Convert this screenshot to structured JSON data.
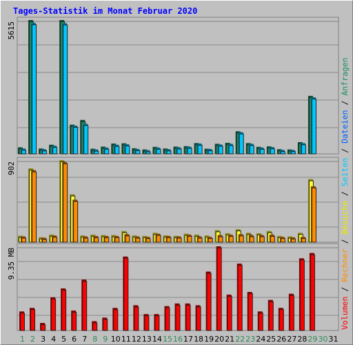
{
  "chart_data": {
    "type": "bar",
    "title": "Tages-Statistik im Monat Februar 2020",
    "categories": [
      "1",
      "2",
      "3",
      "4",
      "5",
      "6",
      "7",
      "8",
      "9",
      "10",
      "11",
      "12",
      "13",
      "14",
      "15",
      "16",
      "17",
      "18",
      "19",
      "20",
      "21",
      "22",
      "23",
      "24",
      "25",
      "26",
      "27",
      "28",
      "29",
      "30",
      "31"
    ],
    "weekend_days": [
      "1",
      "2",
      "8",
      "9",
      "15",
      "16",
      "22",
      "23",
      "29",
      "30"
    ],
    "panels": [
      {
        "id": "requests",
        "max_label": "5615",
        "max": 5615,
        "series": [
          {
            "name": "Anfragen",
            "color": "#1f8f60",
            "values": [
              220,
              5615,
              170,
              330,
              5615,
              1180,
              1380,
              160,
              250,
              380,
              390,
              180,
              130,
              240,
              170,
              250,
              270,
              400,
              160,
              370,
              410,
              900,
              400,
              240,
              260,
              140,
              130,
              440,
              2400,
              0,
              0
            ]
          },
          {
            "name": "Dateien",
            "color": "#00c8ff",
            "values": [
              170,
              5490,
              140,
              290,
              5480,
              1140,
              1220,
              130,
              210,
              330,
              350,
              150,
              100,
              210,
              140,
              220,
              250,
              380,
              150,
              340,
              370,
              860,
              370,
              210,
              230,
              110,
              110,
              400,
              2340,
              0,
              0
            ]
          }
        ]
      },
      {
        "id": "visits",
        "max_label": "902",
        "max": 902,
        "series": [
          {
            "name": "Besuche",
            "color": "#ffff33",
            "values": [
              57,
              810,
              40,
              70,
              902,
              520,
              60,
              70,
              65,
              65,
              110,
              60,
              55,
              90,
              60,
              55,
              80,
              70,
              60,
              120,
              85,
              130,
              90,
              85,
              110,
              55,
              50,
              90,
              690,
              0,
              0
            ]
          },
          {
            "name": "Rechner",
            "color": "#ff8c00",
            "values": [
              50,
              790,
              35,
              60,
              880,
              460,
              50,
              55,
              55,
              55,
              75,
              50,
              45,
              80,
              55,
              50,
              70,
              50,
              45,
              65,
              70,
              75,
              65,
              65,
              70,
              45,
              40,
              45,
              610,
              0,
              0
            ]
          }
        ]
      },
      {
        "id": "volume",
        "max_label": "9.35 MB",
        "max": 9.35,
        "series": [
          {
            "name": "Volumen",
            "color": "#ff0000",
            "values": [
              2.0,
              2.4,
              0.7,
              3.6,
              4.6,
              2.1,
              5.6,
              0.9,
              1.3,
              2.4,
              8.2,
              2.7,
              1.7,
              1.7,
              2.6,
              2.9,
              2.9,
              2.7,
              6.5,
              9.35,
              3.9,
              7.4,
              4.2,
              2.0,
              3.3,
              2.4,
              4.0,
              8.0,
              8.6,
              0,
              0
            ]
          }
        ]
      }
    ],
    "legend": [
      {
        "label": "Volumen",
        "color": "#ff0000"
      },
      {
        "label": "Rechner",
        "color": "#ff8c00"
      },
      {
        "label": "Besuche",
        "color": "#e8e800"
      },
      {
        "label": "Seiten",
        "color": "#00c8ff"
      },
      {
        "label": "Dateien",
        "color": "#0060ff"
      },
      {
        "label": "Anfragen",
        "color": "#1f8f60"
      }
    ],
    "legend_separator": " / ",
    "legend_placement": "right, vertical",
    "grid": true
  }
}
